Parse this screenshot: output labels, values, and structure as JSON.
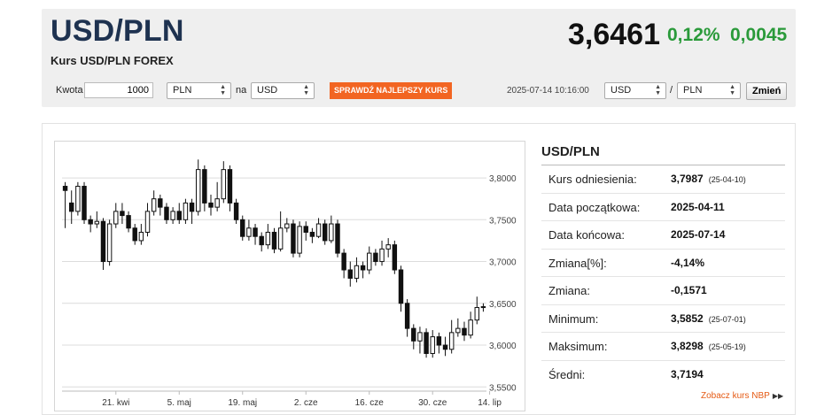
{
  "header": {
    "pair": "USD/PLN",
    "subtitle": "Kurs USD/PLN FOREX",
    "rate": "3,6461",
    "change_pct": "0,12%",
    "change_abs": "0,0045"
  },
  "converter": {
    "amount_label": "Kwota",
    "amount_value": "1000",
    "from_currency": "PLN",
    "to_label": "na",
    "to_currency": "USD",
    "cta_label": "SPRAWDŹ NAJLEPSZY KURS",
    "timestamp": "2025-07-14 10:16:00",
    "pair_base": "USD",
    "pair_separator": "/",
    "pair_quote": "PLN",
    "change_label": "Zmień"
  },
  "stats": {
    "title": "USD/PLN",
    "rows": [
      {
        "label": "Kurs odniesienia:",
        "value": "3,7987",
        "date": "(25-04-10)"
      },
      {
        "label": "Data początkowa:",
        "value": "2025-04-11",
        "date": ""
      },
      {
        "label": "Data końcowa:",
        "value": "2025-07-14",
        "date": ""
      },
      {
        "label": "Zmiana[%]:",
        "value": "-4,14%",
        "date": ""
      },
      {
        "label": "Zmiana:",
        "value": "-0,1571",
        "date": ""
      },
      {
        "label": "Minimum:",
        "value": "3,5852",
        "date": "(25-07-01)"
      },
      {
        "label": "Maksimum:",
        "value": "3,8298",
        "date": "(25-05-19)"
      },
      {
        "label": "Średni:",
        "value": "3,7194",
        "date": ""
      }
    ],
    "nbp_link": "Zobacz kurs NBP"
  },
  "colors": {
    "accent": "#f26522",
    "positive": "#2a9a3a",
    "title": "#1e3250"
  },
  "chart_data": {
    "type": "candlestick",
    "y_ticks": [
      "3,8000",
      "3,7500",
      "3,7000",
      "3,6500",
      "3,6000",
      "3,5500"
    ],
    "y_tick_values": [
      3.8,
      3.75,
      3.7,
      3.65,
      3.6,
      3.55
    ],
    "ylim": [
      3.545,
      3.835
    ],
    "x_ticks": [
      "21. kwi",
      "5. maj",
      "19. maj",
      "2. cze",
      "16. cze",
      "30. cze",
      "14. lip"
    ],
    "x_tick_index": [
      8,
      18,
      28,
      38,
      48,
      58,
      67
    ],
    "grid": true,
    "candles": [
      [
        3.79,
        3.785,
        3.795,
        3.74
      ],
      [
        3.77,
        3.76,
        3.785,
        3.745
      ],
      [
        3.76,
        3.79,
        3.795,
        3.755
      ],
      [
        3.79,
        3.75,
        3.795,
        3.745
      ],
      [
        3.75,
        3.745,
        3.755,
        3.735
      ],
      [
        3.745,
        3.748,
        3.76,
        3.74
      ],
      [
        3.748,
        3.7,
        3.752,
        3.69
      ],
      [
        3.7,
        3.745,
        3.75,
        3.695
      ],
      [
        3.745,
        3.76,
        3.77,
        3.74
      ],
      [
        3.76,
        3.755,
        3.77,
        3.745
      ],
      [
        3.755,
        3.74,
        3.76,
        3.735
      ],
      [
        3.74,
        3.725,
        3.745,
        3.72
      ],
      [
        3.725,
        3.735,
        3.745,
        3.72
      ],
      [
        3.735,
        3.76,
        3.77,
        3.73
      ],
      [
        3.76,
        3.775,
        3.785,
        3.755
      ],
      [
        3.775,
        3.765,
        3.78,
        3.755
      ],
      [
        3.765,
        3.75,
        3.77,
        3.745
      ],
      [
        3.75,
        3.76,
        3.765,
        3.745
      ],
      [
        3.76,
        3.75,
        3.77,
        3.745
      ],
      [
        3.75,
        3.77,
        3.775,
        3.745
      ],
      [
        3.77,
        3.76,
        3.775,
        3.745
      ],
      [
        3.76,
        3.81,
        3.822,
        3.755
      ],
      [
        3.81,
        3.77,
        3.815,
        3.76
      ],
      [
        3.77,
        3.765,
        3.78,
        3.755
      ],
      [
        3.765,
        3.775,
        3.795,
        3.76
      ],
      [
        3.775,
        3.81,
        3.82,
        3.77
      ],
      [
        3.81,
        3.77,
        3.815,
        3.76
      ],
      [
        3.77,
        3.75,
        3.775,
        3.745
      ],
      [
        3.75,
        3.73,
        3.755,
        3.725
      ],
      [
        3.73,
        3.74,
        3.75,
        3.725
      ],
      [
        3.74,
        3.73,
        3.745,
        3.72
      ],
      [
        3.73,
        3.72,
        3.735,
        3.712
      ],
      [
        3.72,
        3.735,
        3.745,
        3.715
      ],
      [
        3.735,
        3.715,
        3.74,
        3.71
      ],
      [
        3.715,
        3.74,
        3.76,
        3.712
      ],
      [
        3.74,
        3.745,
        3.752,
        3.735
      ],
      [
        3.745,
        3.71,
        3.75,
        3.705
      ],
      [
        3.71,
        3.742,
        3.748,
        3.705
      ],
      [
        3.742,
        3.735,
        3.748,
        3.725
      ],
      [
        3.735,
        3.73,
        3.74,
        3.722
      ],
      [
        3.73,
        3.745,
        3.752,
        3.728
      ],
      [
        3.745,
        3.725,
        3.75,
        3.72
      ],
      [
        3.725,
        3.745,
        3.755,
        3.722
      ],
      [
        3.745,
        3.71,
        3.75,
        3.705
      ],
      [
        3.71,
        3.69,
        3.715,
        3.68
      ],
      [
        3.69,
        3.68,
        3.7,
        3.67
      ],
      [
        3.68,
        3.695,
        3.705,
        3.675
      ],
      [
        3.695,
        3.69,
        3.7,
        3.68
      ],
      [
        3.69,
        3.71,
        3.718,
        3.685
      ],
      [
        3.71,
        3.7,
        3.715,
        3.695
      ],
      [
        3.7,
        3.715,
        3.725,
        3.695
      ],
      [
        3.715,
        3.72,
        3.728,
        3.705
      ],
      [
        3.72,
        3.69,
        3.725,
        3.685
      ],
      [
        3.69,
        3.65,
        3.695,
        3.64
      ],
      [
        3.65,
        3.62,
        3.655,
        3.61
      ],
      [
        3.62,
        3.605,
        3.625,
        3.595
      ],
      [
        3.605,
        3.615,
        3.622,
        3.59
      ],
      [
        3.615,
        3.59,
        3.62,
        3.585
      ],
      [
        3.59,
        3.61,
        3.618,
        3.585
      ],
      [
        3.61,
        3.6,
        3.615,
        3.59
      ],
      [
        3.6,
        3.595,
        3.61,
        3.587
      ],
      [
        3.595,
        3.615,
        3.63,
        3.59
      ],
      [
        3.615,
        3.62,
        3.632,
        3.61
      ],
      [
        3.62,
        3.612,
        3.628,
        3.605
      ],
      [
        3.612,
        3.63,
        3.64,
        3.608
      ],
      [
        3.63,
        3.645,
        3.658,
        3.625
      ],
      [
        3.645,
        3.646,
        3.65,
        3.64
      ]
    ]
  }
}
